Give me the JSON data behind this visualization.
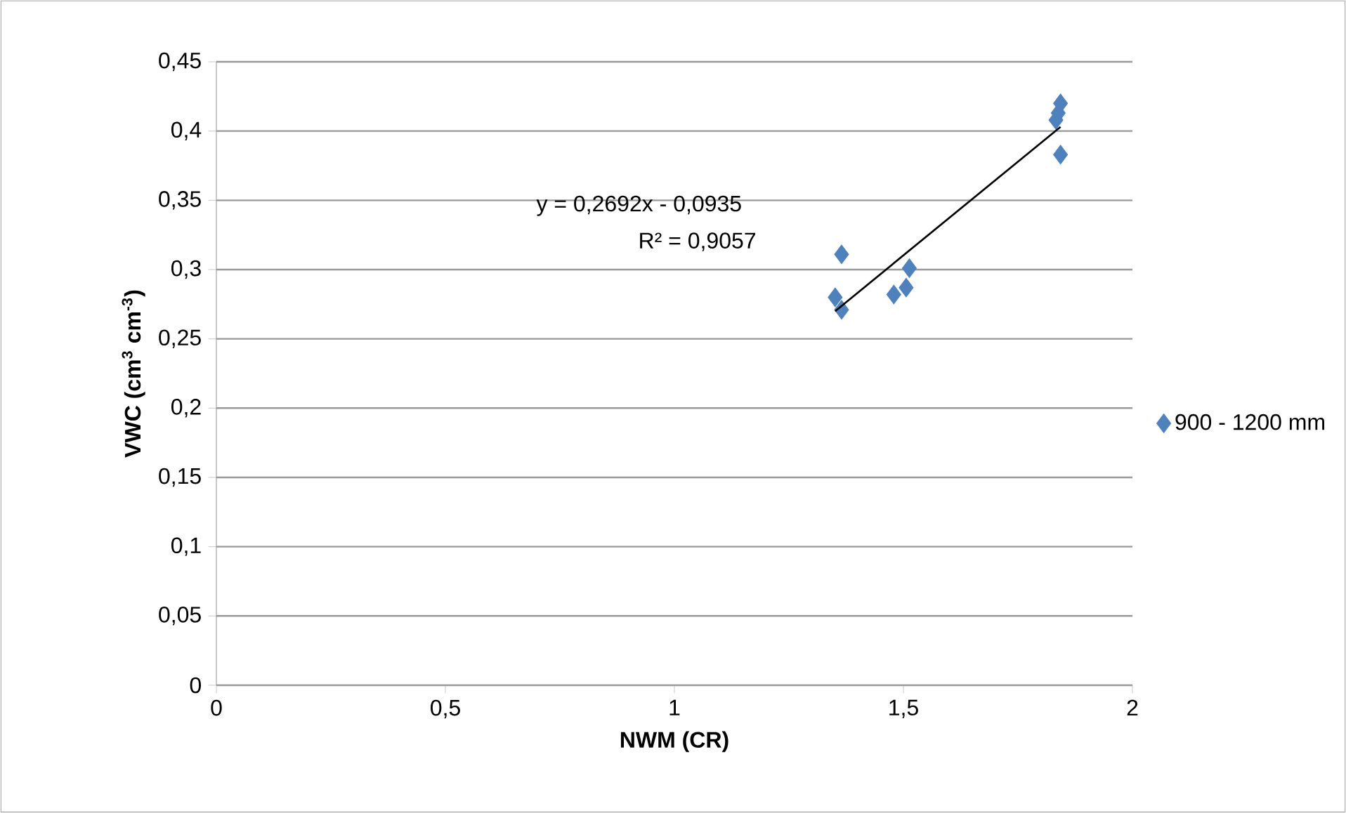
{
  "chart_data": {
    "type": "scatter",
    "xlabel": "NWM (CR)",
    "ylabel": "VWC (cm$^{3}$ cm$^{-3}$)",
    "xlim": [
      0,
      2
    ],
    "ylim": [
      0,
      0.45
    ],
    "xticks": [
      0,
      {
        "value": 0.5,
        "label": "0,5"
      },
      1,
      {
        "value": 1.5,
        "label": "1,5"
      },
      2
    ],
    "yticks": [
      0,
      {
        "value": 0.05,
        "label": "0,05"
      },
      {
        "value": 0.1,
        "label": "0,1"
      },
      {
        "value": 0.15,
        "label": "0,15"
      },
      {
        "value": 0.2,
        "label": "0,2"
      },
      {
        "value": 0.25,
        "label": "0,25"
      },
      {
        "value": 0.3,
        "label": "0,3"
      },
      {
        "value": 0.35,
        "label": "0,35"
      },
      {
        "value": 0.4,
        "label": "0,4"
      },
      {
        "value": 0.45,
        "label": "0,45"
      }
    ],
    "grid": "y",
    "legend": "right",
    "annotations": [
      "y = 0,2692x - 0,0935",
      "R² = 0,9057"
    ],
    "series": [
      {
        "name": "900 - 1200 mm",
        "color": "#4f81bd",
        "marker": "diamond",
        "x": [
          1.365,
          1.351,
          1.365,
          1.479,
          1.506,
          1.513,
          1.843,
          1.838,
          1.833,
          1.843
        ],
        "values": [
          0.311,
          0.28,
          0.271,
          0.282,
          0.287,
          0.301,
          0.42,
          0.413,
          0.408,
          0.383
        ]
      },
      {
        "type": "line",
        "color": "#000000",
        "marker": "none",
        "x": [
          1.351,
          1.843
        ],
        "values": [
          0.27,
          0.403
        ]
      }
    ]
  }
}
